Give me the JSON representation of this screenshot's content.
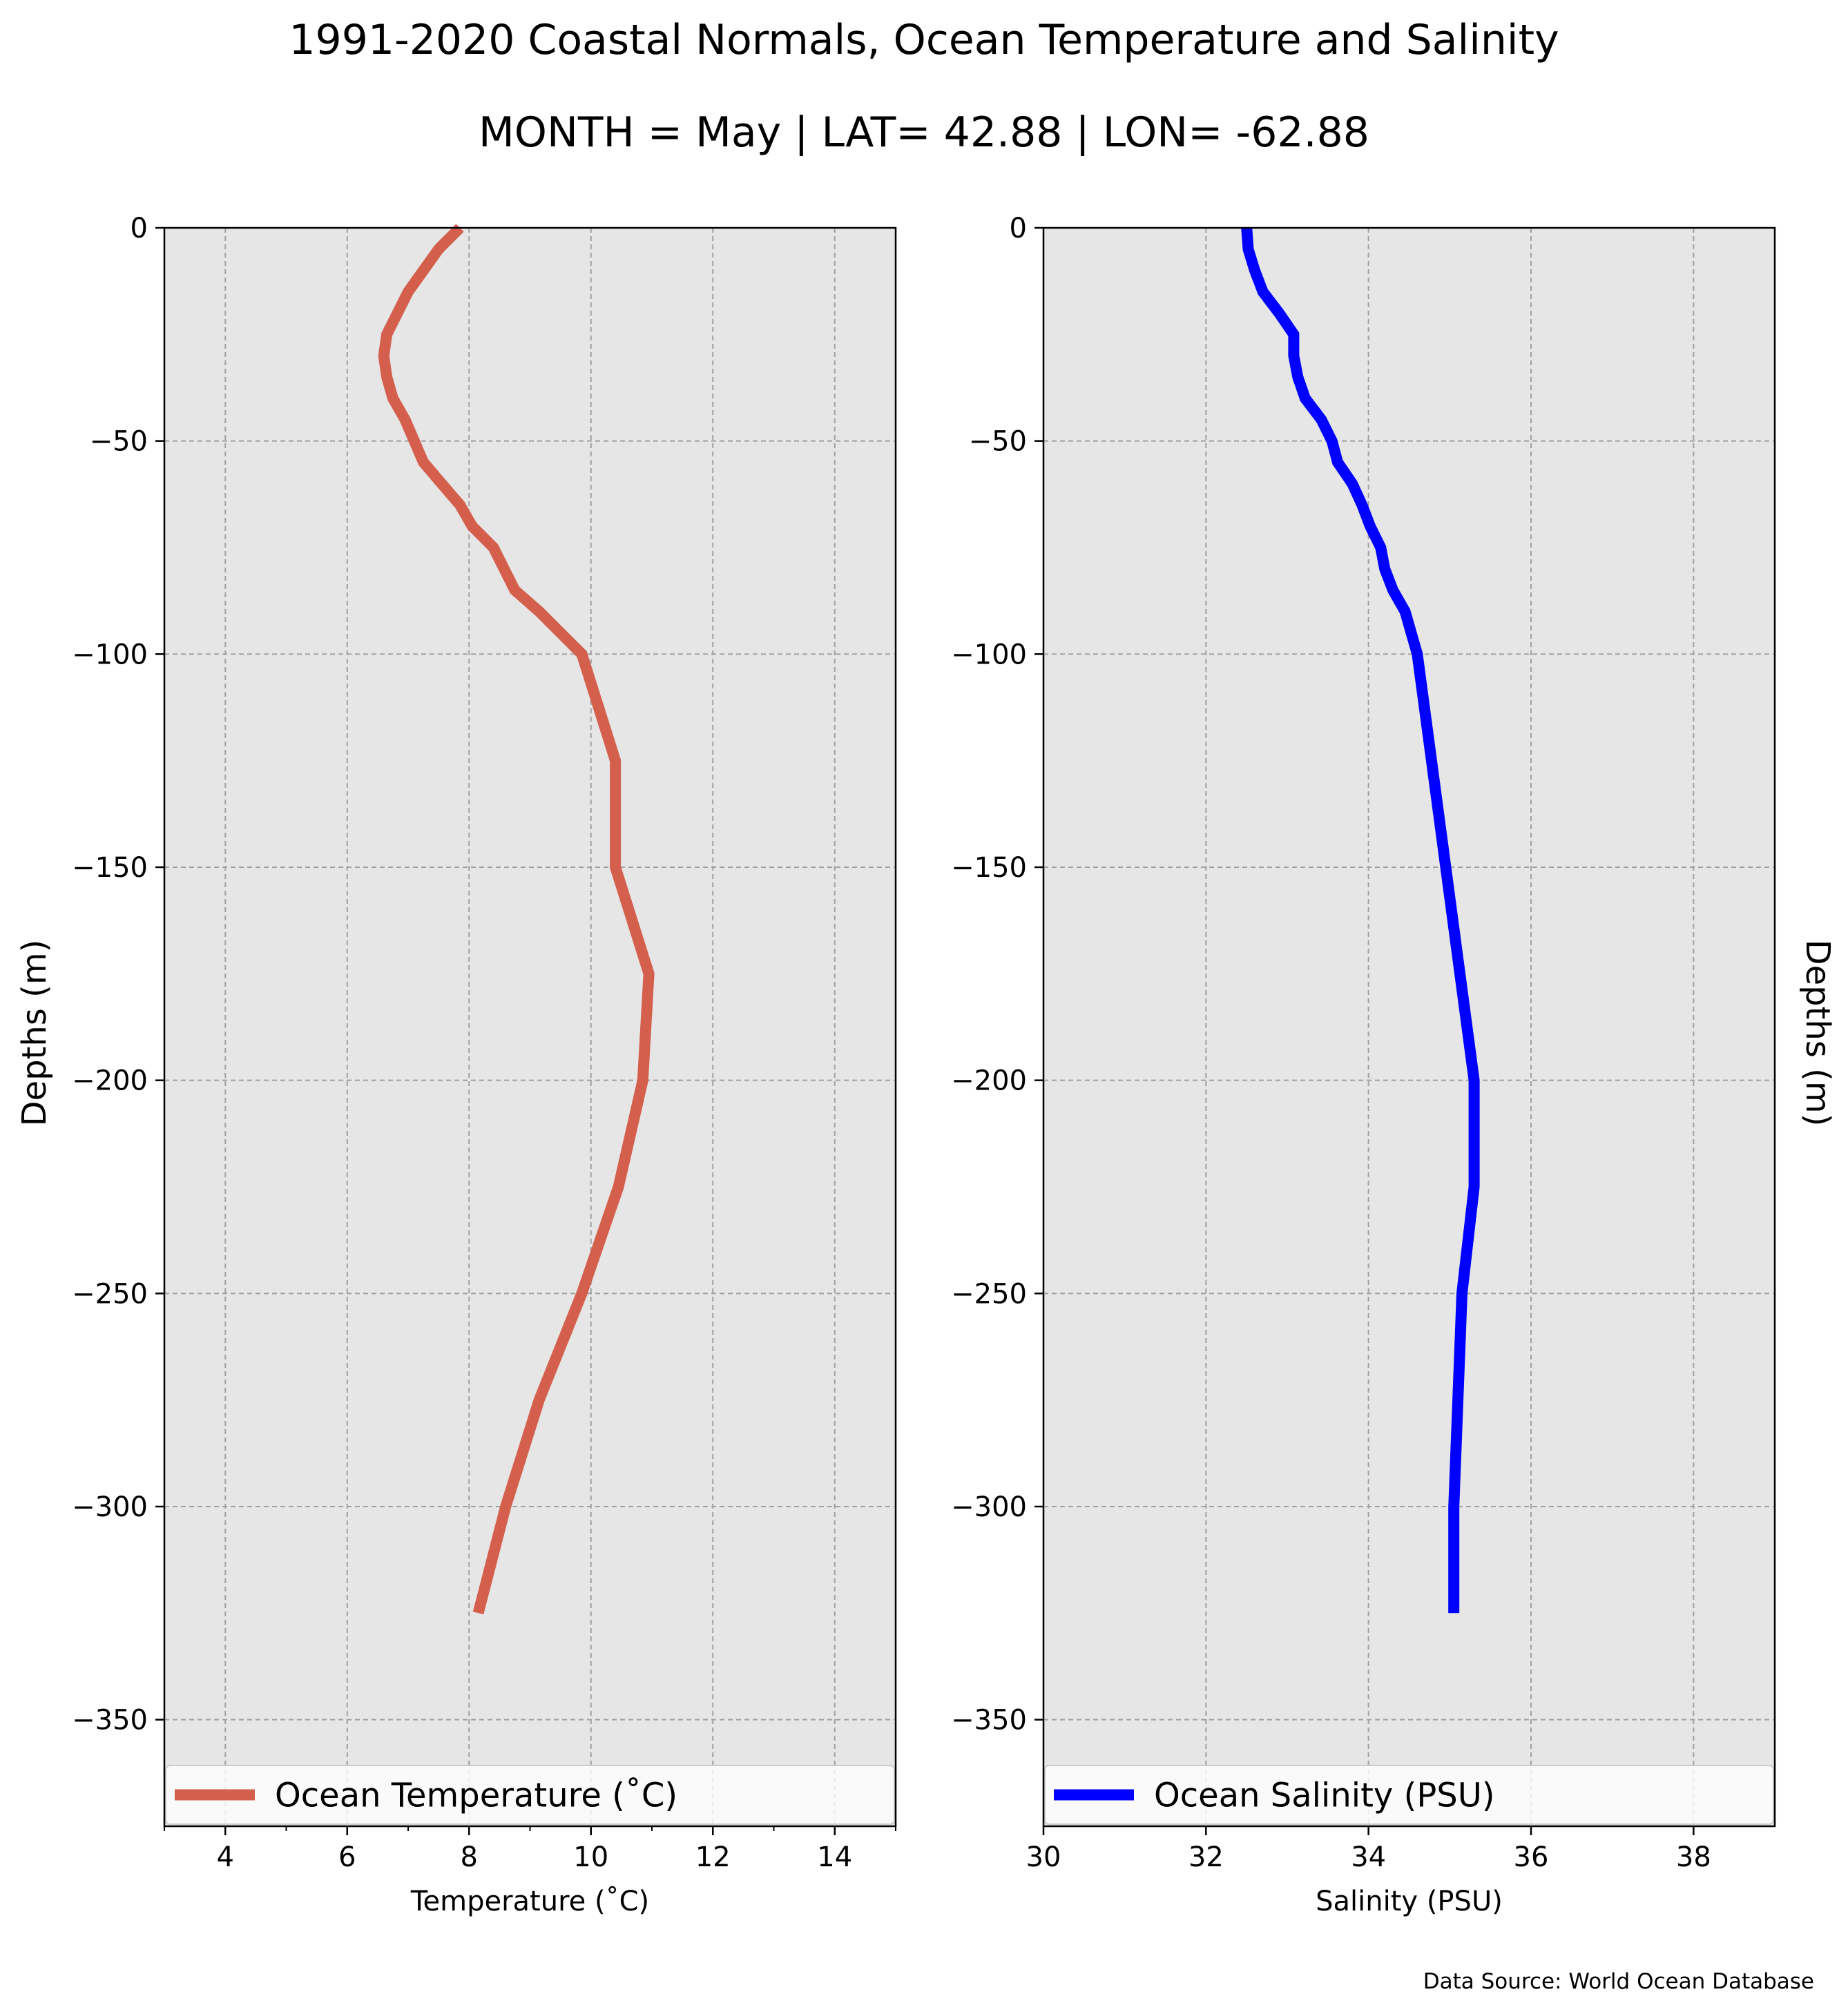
{
  "figure": {
    "title": "1991-2020 Coastal Normals, Ocean Temperature and Salinity",
    "subtitle": "MONTH = May | LAT= 42.88 | LON= -62.88",
    "source": "Data Source: World Ocean Database",
    "ylabel_left": "Depths (m)",
    "ylabel_right": "Depths (m)"
  },
  "colors": {
    "temperature": "#d45f4d",
    "salinity": "#0000ff",
    "plot_background": "#e6e6e6",
    "grid": "#a0a0a0"
  },
  "chart_data": [
    {
      "type": "line",
      "xlabel": "Temperature ($^\\circ$C)",
      "ylabel": "Depths (m)",
      "xlabel_display": "Temperature (˚C)",
      "xlim": [
        3,
        15
      ],
      "ylim": [
        -375,
        0
      ],
      "xticks": [
        4,
        6,
        8,
        10,
        12,
        14
      ],
      "xtick_labels": [
        "4",
        "6",
        "8",
        "10",
        "12",
        "14"
      ],
      "yticks": [
        0,
        -50,
        -100,
        -150,
        -200,
        -250,
        -300,
        -350
      ],
      "ytick_labels": [
        "0",
        "−50",
        "−100",
        "−150",
        "−200",
        "−250",
        "−300",
        "−350"
      ],
      "grid": true,
      "legend_position": "bottom",
      "series": [
        {
          "name": "Ocean Temperature (˚C)",
          "x": [
            7.85,
            7.5,
            7.25,
            7.0,
            6.65,
            6.6,
            6.65,
            6.75,
            6.95,
            7.25,
            7.55,
            7.85,
            8.05,
            8.4,
            8.75,
            9.15,
            9.5,
            9.85,
            10.4,
            10.4,
            10.4,
            10.95,
            10.85,
            10.45,
            9.85,
            9.15,
            8.6,
            8.15
          ],
          "y": [
            0,
            -5,
            -10,
            -15,
            -25,
            -30,
            -35,
            -40,
            -45,
            -55,
            -60,
            -65,
            -70,
            -75,
            -85,
            -90,
            -95,
            -100,
            -125,
            -150,
            -150,
            -175,
            -200,
            -225,
            -250,
            -275,
            -300,
            -325
          ]
        }
      ]
    },
    {
      "type": "line",
      "xlabel": "Salinity (PSU)",
      "ylabel": "Depths (m)",
      "xlim": [
        30,
        39
      ],
      "ylim": [
        -375,
        0
      ],
      "xticks": [
        30,
        32,
        34,
        36,
        38
      ],
      "xtick_labels": [
        "30",
        "32",
        "34",
        "36",
        "38"
      ],
      "yticks": [
        0,
        -50,
        -100,
        -150,
        -200,
        -250,
        -300,
        -350
      ],
      "ytick_labels": [
        "0",
        "−50",
        "−100",
        "−150",
        "−200",
        "−250",
        "−300",
        "−350"
      ],
      "grid": true,
      "legend_position": "bottom",
      "series": [
        {
          "name": "Ocean Salinity (PSU)",
          "x": [
            32.5,
            32.52,
            32.6,
            32.7,
            32.9,
            33.08,
            33.08,
            33.13,
            33.22,
            33.42,
            33.55,
            33.62,
            33.8,
            33.92,
            34.02,
            34.15,
            34.2,
            34.3,
            34.45,
            34.6,
            34.95,
            35.3,
            35.3,
            35.15,
            35.05,
            35.05
          ],
          "y": [
            0,
            -5,
            -10,
            -15,
            -20,
            -25,
            -30,
            -35,
            -40,
            -45,
            -50,
            -55,
            -60,
            -65,
            -70,
            -75,
            -80,
            -85,
            -90,
            -100,
            -150,
            -200,
            -225,
            -250,
            -300,
            -325
          ]
        }
      ]
    }
  ]
}
